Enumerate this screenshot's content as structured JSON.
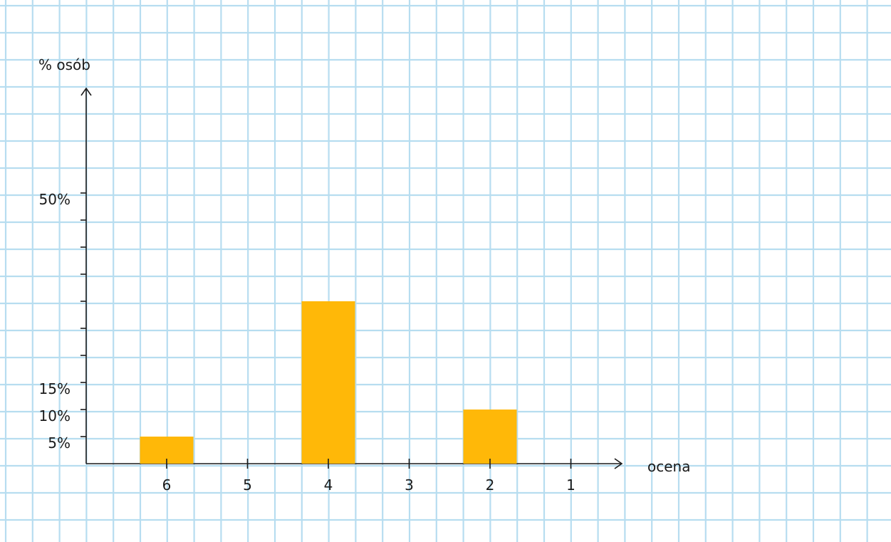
{
  "chart_data": {
    "type": "bar",
    "ylabel": "% osób",
    "xlabel": "ocena",
    "categories": [
      "6",
      "5",
      "4",
      "3",
      "2",
      "1"
    ],
    "values": [
      5,
      0,
      30,
      0,
      10,
      0
    ],
    "y_ticks": [
      5,
      10,
      15,
      20,
      25,
      30,
      35,
      40,
      45,
      50
    ],
    "y_tick_labels": [
      {
        "value": 5,
        "label": "5%"
      },
      {
        "value": 10,
        "label": "10%"
      },
      {
        "value": 15,
        "label": "15%"
      },
      {
        "value": 50,
        "label": "50%"
      }
    ],
    "ylim": [
      0,
      70
    ],
    "grid": true,
    "colors": {
      "bar": "#FFB808",
      "grid": "#B7DDF0",
      "axis": "#1a1a1a"
    }
  }
}
